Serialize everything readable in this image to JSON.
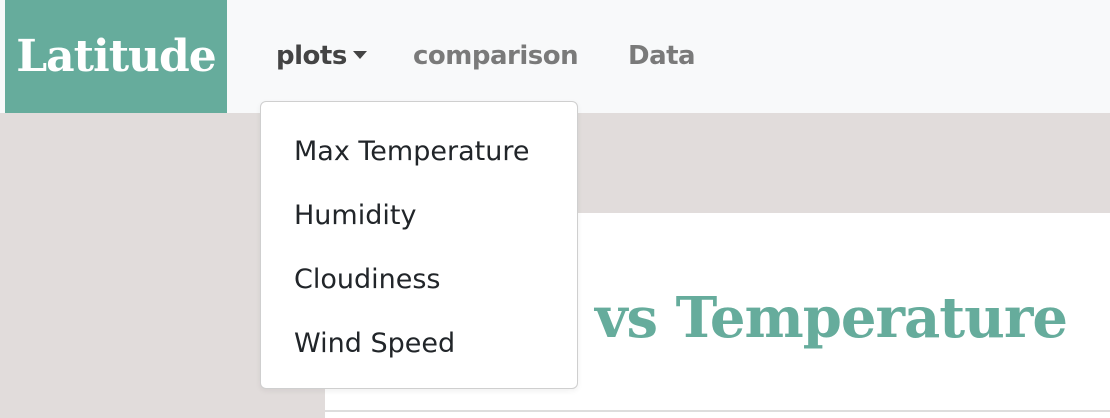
{
  "navbar": {
    "brand": "Latitude",
    "links": [
      {
        "label": "plots",
        "dropdown": true,
        "active": true
      },
      {
        "label": "comparison"
      },
      {
        "label": "Data"
      }
    ]
  },
  "dropdown": {
    "items": [
      {
        "label": "Max Temperature"
      },
      {
        "label": "Humidity"
      },
      {
        "label": "Cloudiness"
      },
      {
        "label": "Wind Speed"
      }
    ]
  },
  "main": {
    "title": "Latitude vs Temperature"
  },
  "colors": {
    "brand_bg": "#66ac9c",
    "title": "#66ac9c",
    "page_bg": "#e1dcdb",
    "navbar_bg": "#f8f9fa"
  }
}
